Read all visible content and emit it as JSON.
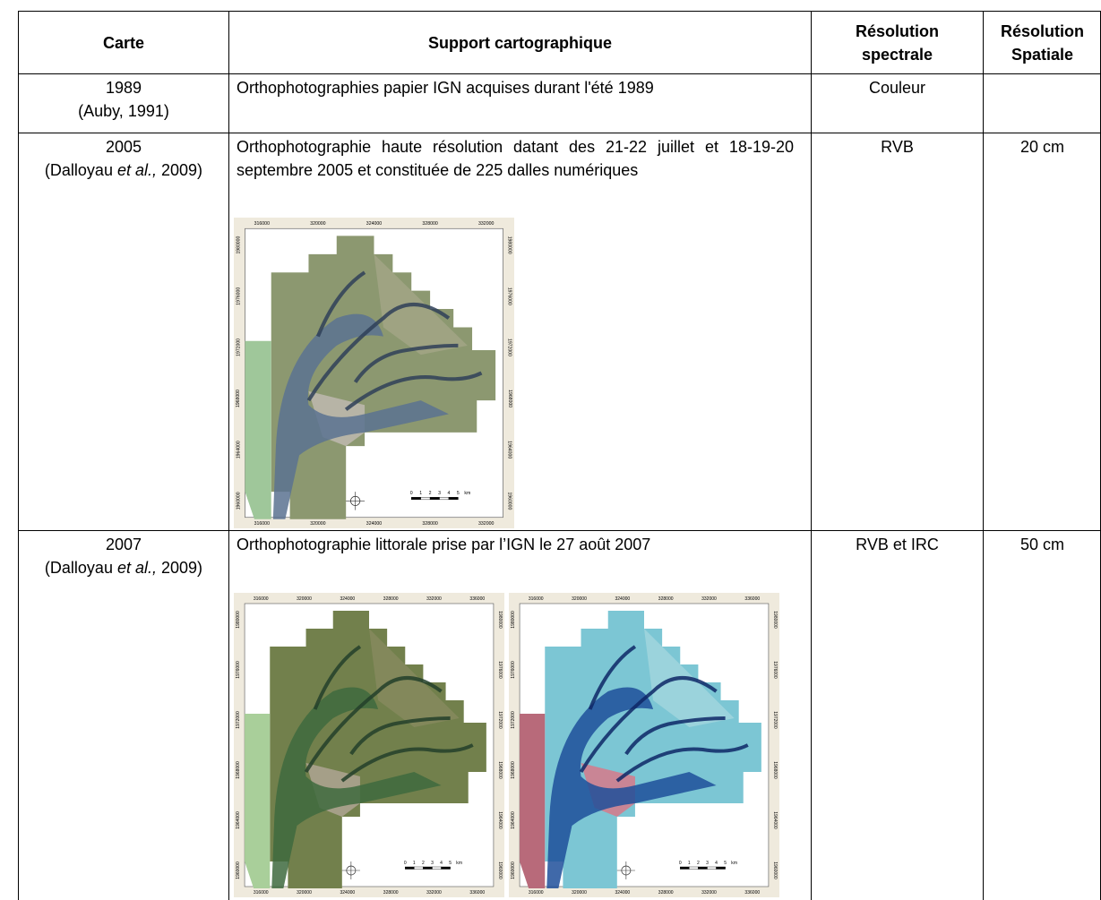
{
  "table": {
    "header": [
      "Carte",
      "Support cartographique",
      "Résolution spectrale",
      "Résolution Spatiale"
    ],
    "rows": [
      {
        "carte": {
          "year": "1989",
          "ref": "(Auby, 1991)"
        },
        "support": "Orthophotographies papier IGN acquises durant l'été 1989",
        "spectrale": "Couleur"
      },
      {
        "carte": {
          "year": "2005",
          "ref_before": "(Dalloyau ",
          "ref_italic": "et al.,",
          "ref_after": "2009)"
        },
        "support": "Orthophotographie haute résolution datant des 21-22 juillet et 18-19-20 septembre 2005 et constituée de 225 dalles numériques",
        "spectrale": "RVB",
        "spatiale": "20 cm",
        "maps": [
          {
            "x_ticks": [
              "316000",
              "320000",
              "324000",
              "328000",
              "332000"
            ],
            "y_ticks": [
              "1980000",
              "1976000",
              "1972000",
              "1968000",
              "1964000",
              "1960000"
            ],
            "scale": [
              "0",
              "1",
              "2",
              "3",
              "4",
              "5",
              "km"
            ]
          }
        ]
      },
      {
        "carte": {
          "year": "2007",
          "ref_before": "(Dalloyau ",
          "ref_italic": "et al.,",
          "ref_after": "2009)"
        },
        "support": "Orthophotographie littorale prise par l’IGN le 27 août 2007",
        "spectrale": "RVB et IRC",
        "spatiale": "50 cm",
        "maps": [
          {
            "x_ticks": [
              "316000",
              "320000",
              "324000",
              "328000",
              "332000",
              "336000"
            ],
            "y_ticks": [
              "1980000",
              "1976000",
              "1972000",
              "1968000",
              "1964000",
              "1960000"
            ],
            "scale": [
              "0",
              "1",
              "2",
              "3",
              "4",
              "5",
              "km"
            ]
          },
          {
            "x_ticks": [
              "316000",
              "320000",
              "324000",
              "328000",
              "332000",
              "336000"
            ],
            "y_ticks": [
              "1980000",
              "1976000",
              "1972000",
              "1968000",
              "1964000",
              "1960000"
            ],
            "scale": [
              "0",
              "1",
              "2",
              "3",
              "4",
              "5",
              "km"
            ]
          }
        ]
      }
    ]
  }
}
